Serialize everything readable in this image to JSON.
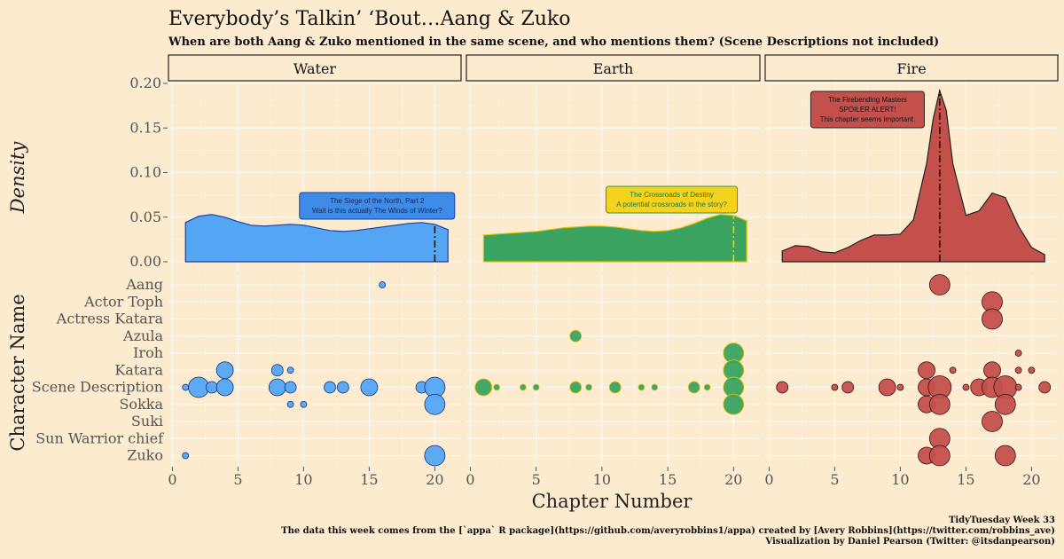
{
  "title": "Everybody’s Talkin’ ‘Bout…Aang & Zuko",
  "subtitle": "When are both Aang & Zuko mentioned in the same scene, and who mentions them? (Scene Descriptions not included)",
  "caption": [
    "TidyTuesday Week 33",
    "The data this week comes from the [`appa` R package](https://github.com/averyrobbins1/appa) created by [Avery Robbins](https://twitter.com/robbins_ave)",
    "Visualization by Daniel Pearson (Twitter: @itsdanpearson)"
  ],
  "chart_data": {
    "type": "density + scatter (faceted)",
    "facets": [
      "Water",
      "Earth",
      "Fire"
    ],
    "colors": {
      "Water": "#54a6f5",
      "Earth": "#3aa35f",
      "Fire": "#c4504c"
    },
    "xlabel": "Chapter Number",
    "density_ylabel": "Density",
    "scatter_ylabel": "Character Name",
    "x_ticks": [
      0,
      5,
      10,
      15,
      20
    ],
    "density_ylim": [
      0,
      0.2
    ],
    "density_y_ticks": [
      "0.00",
      "0.05",
      "0.10",
      "0.15",
      "0.20"
    ],
    "characters": [
      "Aang",
      "Actor Toph",
      "Actress Katara",
      "Azula",
      "Iroh",
      "Katara",
      "Scene Description",
      "Sokka",
      "Suki",
      "Sun Warrior chief",
      "Zuko"
    ],
    "density": {
      "Water": {
        "x": [
          1,
          2,
          3,
          4,
          5,
          6,
          7,
          8,
          9,
          10,
          11,
          12,
          13,
          14,
          15,
          16,
          17,
          18,
          19,
          20,
          21
        ],
        "y": [
          0.044,
          0.051,
          0.053,
          0.05,
          0.045,
          0.041,
          0.04,
          0.041,
          0.042,
          0.041,
          0.038,
          0.035,
          0.034,
          0.035,
          0.037,
          0.039,
          0.041,
          0.043,
          0.044,
          0.042,
          0.036
        ]
      },
      "Earth": {
        "x": [
          1,
          2,
          3,
          4,
          5,
          6,
          7,
          8,
          9,
          10,
          11,
          12,
          13,
          14,
          15,
          16,
          17,
          18,
          19,
          20,
          21
        ],
        "y": [
          0.03,
          0.031,
          0.032,
          0.033,
          0.034,
          0.036,
          0.038,
          0.039,
          0.04,
          0.04,
          0.039,
          0.037,
          0.035,
          0.034,
          0.035,
          0.038,
          0.043,
          0.049,
          0.053,
          0.052,
          0.046
        ]
      },
      "Fire": {
        "x": [
          1,
          2,
          3,
          4,
          5,
          6,
          7,
          8,
          9,
          10,
          11,
          12,
          12.5,
          13,
          13.5,
          14,
          15,
          16,
          17,
          18,
          19,
          20,
          21
        ],
        "y": [
          0.012,
          0.018,
          0.017,
          0.011,
          0.01,
          0.016,
          0.024,
          0.03,
          0.03,
          0.031,
          0.047,
          0.11,
          0.16,
          0.192,
          0.17,
          0.11,
          0.052,
          0.057,
          0.077,
          0.072,
          0.04,
          0.016,
          0.008
        ]
      }
    },
    "reference_lines": {
      "Water": 20,
      "Earth": 20,
      "Fire": 13
    },
    "annotations": [
      {
        "facet": "Water",
        "lines": [
          "The Siege of the North, Part 2",
          "Wait is this actually The Winds of Winter?"
        ]
      },
      {
        "facet": "Earth",
        "lines": [
          "The Crossroads of Destiny",
          "A potential crossroads in the story?"
        ]
      },
      {
        "facet": "Fire",
        "lines": [
          "The Firebending Masters",
          "SPOILER ALERT!",
          "This chapter seems important."
        ]
      }
    ],
    "points": {
      "Water": [
        {
          "c": "Aang",
          "x": 16,
          "s": 1
        },
        {
          "c": "Katara",
          "x": 4,
          "s": 3
        },
        {
          "c": "Katara",
          "x": 8,
          "s": 2
        },
        {
          "c": "Katara",
          "x": 9,
          "s": 1
        },
        {
          "c": "Scene Description",
          "x": 1,
          "s": 1
        },
        {
          "c": "Scene Description",
          "x": 2,
          "s": 4
        },
        {
          "c": "Scene Description",
          "x": 3,
          "s": 2
        },
        {
          "c": "Scene Description",
          "x": 4,
          "s": 3
        },
        {
          "c": "Scene Description",
          "x": 8,
          "s": 3
        },
        {
          "c": "Scene Description",
          "x": 9,
          "s": 2
        },
        {
          "c": "Scene Description",
          "x": 12,
          "s": 2
        },
        {
          "c": "Scene Description",
          "x": 13,
          "s": 2
        },
        {
          "c": "Scene Description",
          "x": 15,
          "s": 3
        },
        {
          "c": "Scene Description",
          "x": 19,
          "s": 2
        },
        {
          "c": "Scene Description",
          "x": 20,
          "s": 4
        },
        {
          "c": "Sokka",
          "x": 9,
          "s": 1
        },
        {
          "c": "Sokka",
          "x": 10,
          "s": 1
        },
        {
          "c": "Sokka",
          "x": 20,
          "s": 4
        },
        {
          "c": "Zuko",
          "x": 1,
          "s": 1
        },
        {
          "c": "Zuko",
          "x": 20,
          "s": 4
        }
      ],
      "Earth": [
        {
          "c": "Azula",
          "x": 8,
          "s": 2
        },
        {
          "c": "Iroh",
          "x": 20,
          "s": 4
        },
        {
          "c": "Katara",
          "x": 20,
          "s": 4
        },
        {
          "c": "Scene Description",
          "x": 1,
          "s": 3
        },
        {
          "c": "Scene Description",
          "x": 2,
          "s": 1
        },
        {
          "c": "Scene Description",
          "x": 4,
          "s": 1
        },
        {
          "c": "Scene Description",
          "x": 5,
          "s": 1
        },
        {
          "c": "Scene Description",
          "x": 8,
          "s": 2
        },
        {
          "c": "Scene Description",
          "x": 9,
          "s": 1
        },
        {
          "c": "Scene Description",
          "x": 11,
          "s": 2
        },
        {
          "c": "Scene Description",
          "x": 13,
          "s": 1
        },
        {
          "c": "Scene Description",
          "x": 14,
          "s": 1
        },
        {
          "c": "Scene Description",
          "x": 17,
          "s": 2
        },
        {
          "c": "Scene Description",
          "x": 18,
          "s": 1
        },
        {
          "c": "Scene Description",
          "x": 20,
          "s": 4
        },
        {
          "c": "Sokka",
          "x": 20,
          "s": 4
        }
      ],
      "Fire": [
        {
          "c": "Aang",
          "x": 13,
          "s": 4
        },
        {
          "c": "Actor Toph",
          "x": 17,
          "s": 4
        },
        {
          "c": "Actress Katara",
          "x": 17,
          "s": 4
        },
        {
          "c": "Iroh",
          "x": 19,
          "s": 1
        },
        {
          "c": "Katara",
          "x": 12,
          "s": 3
        },
        {
          "c": "Katara",
          "x": 14,
          "s": 1
        },
        {
          "c": "Katara",
          "x": 17,
          "s": 3
        },
        {
          "c": "Katara",
          "x": 19,
          "s": 1
        },
        {
          "c": "Katara",
          "x": 20,
          "s": 1
        },
        {
          "c": "Scene Description",
          "x": 1,
          "s": 2
        },
        {
          "c": "Scene Description",
          "x": 5,
          "s": 1
        },
        {
          "c": "Scene Description",
          "x": 6,
          "s": 2
        },
        {
          "c": "Scene Description",
          "x": 9,
          "s": 3
        },
        {
          "c": "Scene Description",
          "x": 10,
          "s": 1
        },
        {
          "c": "Scene Description",
          "x": 12,
          "s": 3
        },
        {
          "c": "Scene Description",
          "x": 13,
          "s": 5
        },
        {
          "c": "Scene Description",
          "x": 15,
          "s": 1
        },
        {
          "c": "Scene Description",
          "x": 16,
          "s": 3
        },
        {
          "c": "Scene Description",
          "x": 17,
          "s": 4
        },
        {
          "c": "Scene Description",
          "x": 18,
          "s": 5
        },
        {
          "c": "Scene Description",
          "x": 19,
          "s": 1
        },
        {
          "c": "Scene Description",
          "x": 21,
          "s": 2
        },
        {
          "c": "Sokka",
          "x": 12,
          "s": 3
        },
        {
          "c": "Sokka",
          "x": 13,
          "s": 4
        },
        {
          "c": "Sokka",
          "x": 18,
          "s": 4
        },
        {
          "c": "Suki",
          "x": 17,
          "s": 4
        },
        {
          "c": "Sun Warrior chief",
          "x": 13,
          "s": 4
        },
        {
          "c": "Zuko",
          "x": 12,
          "s": 3
        },
        {
          "c": "Zuko",
          "x": 13,
          "s": 4
        },
        {
          "c": "Zuko",
          "x": 18,
          "s": 4
        }
      ]
    }
  }
}
